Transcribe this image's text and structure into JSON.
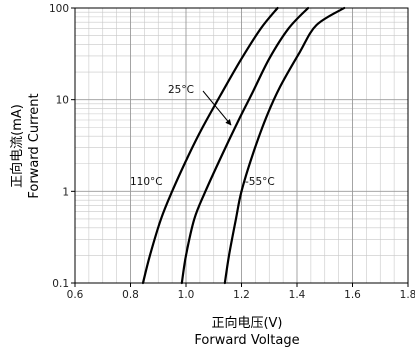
{
  "chart_data": {
    "type": "line",
    "title": "",
    "xlabel_cn": "正向电压(V)",
    "xlabel": "Forward Voltage",
    "ylabel_cn": "正向电流(mA)",
    "ylabel": "Forward Current",
    "xlim": [
      0.6,
      1.8
    ],
    "ylim": [
      0.1,
      100
    ],
    "y_scale": "log",
    "x_ticks": [
      "0.6",
      "0.8",
      "1.0",
      "1.2",
      "1.4",
      "1.6",
      "1.8"
    ],
    "y_ticks": [
      "0.1",
      "1",
      "10",
      "100"
    ],
    "grid": true,
    "series": [
      {
        "name": "110°C",
        "points": [
          [
            0.845,
            0.1
          ],
          [
            0.87,
            0.2
          ],
          [
            0.91,
            0.5
          ],
          [
            0.95,
            1.0
          ],
          [
            1.01,
            2.5
          ],
          [
            1.06,
            5.0
          ],
          [
            1.13,
            12
          ],
          [
            1.2,
            28
          ],
          [
            1.27,
            60
          ],
          [
            1.33,
            100
          ]
        ]
      },
      {
        "name": "25°C",
        "points": [
          [
            0.985,
            0.1
          ],
          [
            1.0,
            0.2
          ],
          [
            1.03,
            0.5
          ],
          [
            1.07,
            1.0
          ],
          [
            1.13,
            2.5
          ],
          [
            1.19,
            6.0
          ],
          [
            1.24,
            12
          ],
          [
            1.3,
            28
          ],
          [
            1.37,
            60
          ],
          [
            1.44,
            100
          ]
        ]
      },
      {
        "name": "-55°C",
        "points": [
          [
            1.14,
            0.1
          ],
          [
            1.155,
            0.2
          ],
          [
            1.18,
            0.5
          ],
          [
            1.2,
            1.0
          ],
          [
            1.24,
            2.5
          ],
          [
            1.29,
            6.5
          ],
          [
            1.34,
            14
          ],
          [
            1.41,
            33
          ],
          [
            1.47,
            65
          ],
          [
            1.57,
            100
          ]
        ]
      }
    ],
    "annotations": [
      {
        "text": "25°C",
        "arrow_to_series": "25°C"
      },
      {
        "text": "110°C",
        "near_series": "110°C"
      },
      {
        "text": "-55°C",
        "near_series": "-55°C"
      }
    ]
  }
}
